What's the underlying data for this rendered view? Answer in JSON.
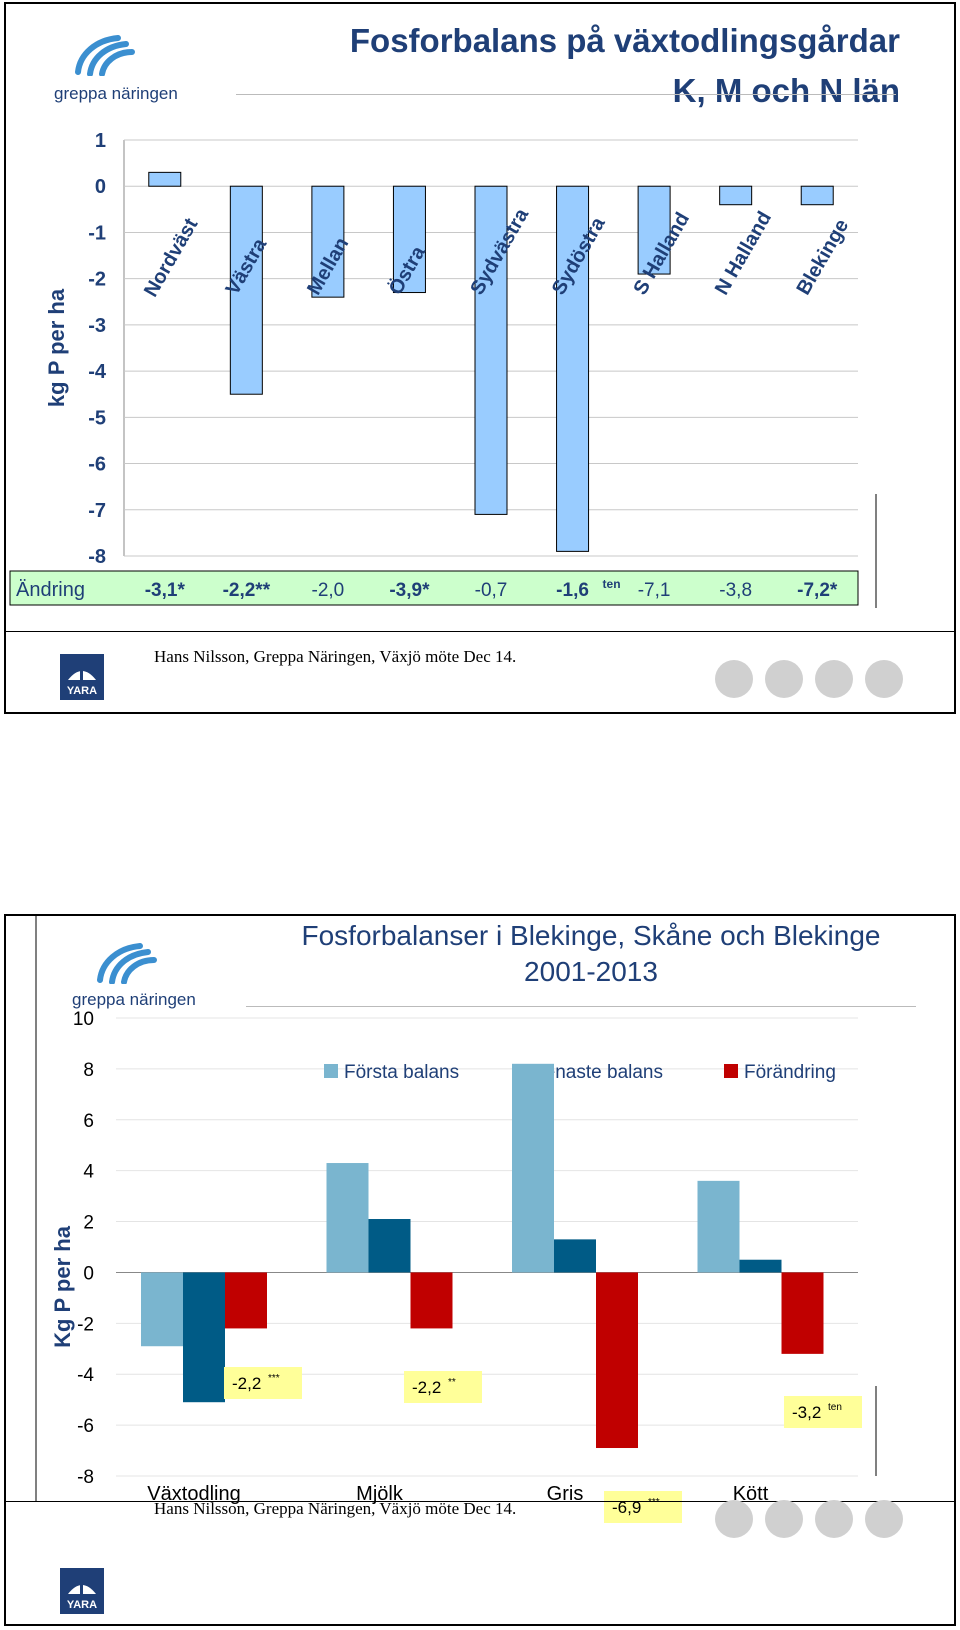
{
  "slides": [
    {
      "logo_text": "greppa näringen",
      "title_line1": "Fosforbalans på växtodlingsgårdar",
      "title_line2": "K, M och N län",
      "footer": "Hans Nilsson, Greppa Näringen, Växjö möte Dec 14.",
      "yara_label": "YARA"
    },
    {
      "logo_text": "greppa näringen",
      "title_line1": "Fosforbalanser i Blekinge, Skåne och Blekinge",
      "title_line2": "2001-2013",
      "footer": "Hans Nilsson, Greppa Näringen, Växjö möte Dec 14.",
      "yara_label": "YARA"
    }
  ],
  "chart_data": [
    {
      "type": "bar",
      "ylabel": "kg P per ha",
      "ylim": [
        -8,
        1
      ],
      "yticks": [
        "1",
        "0",
        "-1",
        "-2",
        "-3",
        "-4",
        "-5",
        "-6",
        "-7",
        "-8"
      ],
      "categories": [
        "Nordväst",
        "Västra",
        "Mellan",
        "Östra",
        "Sydvästra",
        "Sydöstra",
        "S Halland",
        "N Halland",
        "Blekinge"
      ],
      "values": [
        0.3,
        -4.5,
        -2.4,
        -2.3,
        -7.1,
        -7.9,
        -1.9,
        -0.4,
        -0.4
      ],
      "bar_color": "#99ccff",
      "change_row": {
        "label": "Ändring",
        "values": [
          "-3,1*",
          "-2,2**",
          "-2,0",
          "-3,9*",
          "-0,7",
          "-1,6",
          "-7,1",
          "-3,8",
          "-7,2*"
        ],
        "sup": [
          "",
          "",
          "",
          "",
          "",
          "ten",
          "",
          "",
          ""
        ],
        "bold": [
          true,
          true,
          false,
          true,
          false,
          true,
          false,
          false,
          true
        ],
        "background": "#ccffcc"
      }
    },
    {
      "type": "bar",
      "ylabel": "Kg P per ha",
      "ylim": [
        -8,
        10
      ],
      "yticks": [
        "10",
        "8",
        "6",
        "4",
        "2",
        "0",
        "-2",
        "-4",
        "-6",
        "-8"
      ],
      "categories": [
        "Växtodling",
        "Mjölk",
        "Gris",
        "Kött"
      ],
      "legend_position": "top",
      "series": [
        {
          "name": "Första balans",
          "color": "#7ab5cf",
          "values": [
            -2.9,
            4.3,
            8.2,
            3.6
          ]
        },
        {
          "name": "Senaste balans",
          "color": "#005b86",
          "values": [
            -5.1,
            2.1,
            1.3,
            0.5
          ]
        },
        {
          "name": "Förändring",
          "color": "#c00000",
          "values": [
            -2.2,
            -2.2,
            -6.9,
            -3.2
          ]
        }
      ],
      "annotations": [
        {
          "text": "-2,2",
          "sup": "***"
        },
        {
          "text": "-2,2",
          "sup": "**"
        },
        {
          "text": "-6,9",
          "sup": "***"
        },
        {
          "text": "-3,2",
          "sup": "ten"
        }
      ],
      "annotation_color": "#ffff99"
    }
  ]
}
